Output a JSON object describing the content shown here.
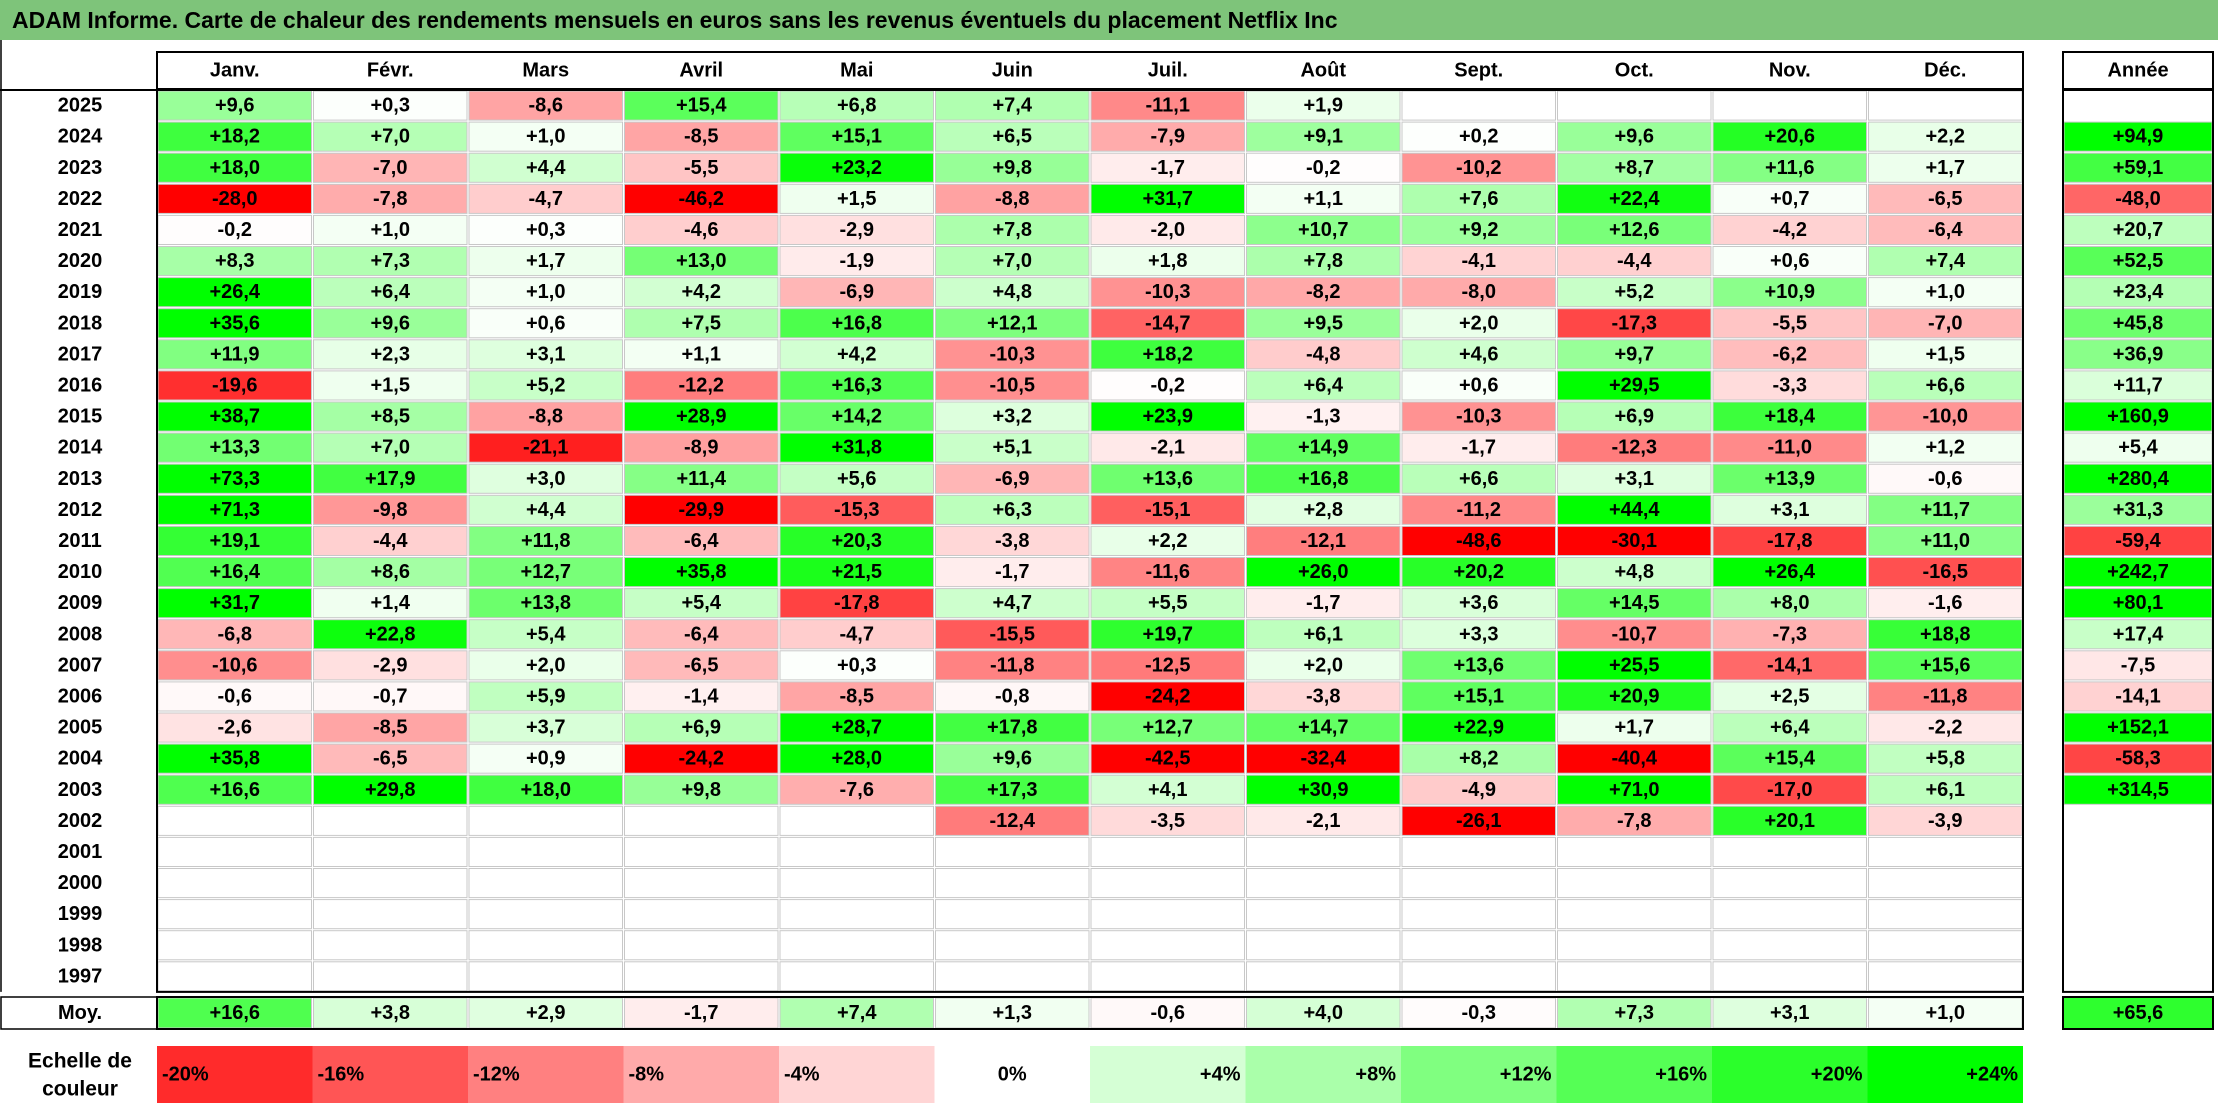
{
  "title": "ADAM Informe. Carte de chaleur des rendements mensuels en euros sans les revenus éventuels du placement Netflix Inc",
  "chart_data": {
    "type": "heatmap",
    "months": [
      "Janv.",
      "Févr.",
      "Mars",
      "Avril",
      "Mai",
      "Juin",
      "Juil.",
      "Août",
      "Sept.",
      "Oct.",
      "Nov.",
      "Déc."
    ],
    "year_header": "Année",
    "years": [
      "2025",
      "2024",
      "2023",
      "2022",
      "2021",
      "2020",
      "2019",
      "2018",
      "2017",
      "2016",
      "2015",
      "2014",
      "2013",
      "2012",
      "2011",
      "2010",
      "2009",
      "2008",
      "2007",
      "2006",
      "2005",
      "2004",
      "2003",
      "2002",
      "2001",
      "2000",
      "1999",
      "1998",
      "1997"
    ],
    "values": [
      [
        9.6,
        0.3,
        -8.6,
        15.4,
        6.8,
        7.4,
        -11.1,
        1.9,
        null,
        null,
        null,
        null
      ],
      [
        18.2,
        7.0,
        1.0,
        -8.5,
        15.1,
        6.5,
        -7.9,
        9.1,
        0.2,
        9.6,
        20.6,
        2.2
      ],
      [
        18.0,
        -7.0,
        4.4,
        -5.5,
        23.2,
        9.8,
        -1.7,
        -0.2,
        -10.2,
        8.7,
        11.6,
        1.7
      ],
      [
        -28.0,
        -7.8,
        -4.7,
        -46.2,
        1.5,
        -8.8,
        31.7,
        1.1,
        7.6,
        22.4,
        0.7,
        -6.5
      ],
      [
        -0.2,
        1.0,
        0.3,
        -4.6,
        -2.9,
        7.8,
        -2.0,
        10.7,
        9.2,
        12.6,
        -4.2,
        -6.4
      ],
      [
        8.3,
        7.3,
        1.7,
        13.0,
        -1.9,
        7.0,
        1.8,
        7.8,
        -4.1,
        -4.4,
        0.6,
        7.4
      ],
      [
        26.4,
        6.4,
        1.0,
        4.2,
        -6.9,
        4.8,
        -10.3,
        -8.2,
        -8.0,
        5.2,
        10.9,
        1.0
      ],
      [
        35.6,
        9.6,
        0.6,
        7.5,
        16.8,
        12.1,
        -14.7,
        9.5,
        2.0,
        -17.3,
        -5.5,
        -7.0
      ],
      [
        11.9,
        2.3,
        3.1,
        1.1,
        4.2,
        -10.3,
        18.2,
        -4.8,
        4.6,
        9.7,
        -6.2,
        1.5
      ],
      [
        -19.6,
        1.5,
        5.2,
        -12.2,
        16.3,
        -10.5,
        -0.2,
        6.4,
        0.6,
        29.5,
        -3.3,
        6.6
      ],
      [
        38.7,
        8.5,
        -8.8,
        28.9,
        14.2,
        3.2,
        23.9,
        -1.3,
        -10.3,
        6.9,
        18.4,
        -10.0
      ],
      [
        13.3,
        7.0,
        -21.1,
        -8.9,
        31.8,
        5.1,
        -2.1,
        14.9,
        -1.7,
        -12.3,
        -11.0,
        1.2
      ],
      [
        73.3,
        17.9,
        3.0,
        11.4,
        5.6,
        -6.9,
        13.6,
        16.8,
        6.6,
        3.1,
        13.9,
        -0.6
      ],
      [
        71.3,
        -9.8,
        4.4,
        -29.9,
        -15.3,
        6.3,
        -15.1,
        2.8,
        -11.2,
        44.4,
        3.1,
        11.7
      ],
      [
        19.1,
        -4.4,
        11.8,
        -6.4,
        20.3,
        -3.8,
        2.2,
        -12.1,
        -48.6,
        -30.1,
        -17.8,
        11.0
      ],
      [
        16.4,
        8.6,
        12.7,
        35.8,
        21.5,
        -1.7,
        -11.6,
        26.0,
        20.2,
        4.8,
        26.4,
        -16.5
      ],
      [
        31.7,
        1.4,
        13.8,
        5.4,
        -17.8,
        4.7,
        5.5,
        -1.7,
        3.6,
        14.5,
        8.0,
        -1.6
      ],
      [
        -6.8,
        22.8,
        5.4,
        -6.4,
        -4.7,
        -15.5,
        19.7,
        6.1,
        3.3,
        -10.7,
        -7.3,
        18.8
      ],
      [
        -10.6,
        -2.9,
        2.0,
        -6.5,
        0.3,
        -11.8,
        -12.5,
        2.0,
        13.6,
        25.5,
        -14.1,
        15.6
      ],
      [
        -0.6,
        -0.7,
        5.9,
        -1.4,
        -8.5,
        -0.8,
        -24.2,
        -3.8,
        15.1,
        20.9,
        2.5,
        -11.8
      ],
      [
        -2.6,
        -8.5,
        3.7,
        6.9,
        28.7,
        17.8,
        12.7,
        14.7,
        22.9,
        1.7,
        6.4,
        -2.2
      ],
      [
        35.8,
        -6.5,
        0.9,
        -24.2,
        28.0,
        9.6,
        -42.5,
        -32.4,
        8.2,
        -40.4,
        15.4,
        5.8
      ],
      [
        16.6,
        29.8,
        18.0,
        9.8,
        -7.6,
        17.3,
        4.1,
        30.9,
        -4.9,
        71.0,
        -17.0,
        6.1
      ],
      [
        null,
        null,
        null,
        null,
        null,
        -12.4,
        -3.5,
        -2.1,
        -26.1,
        -7.8,
        20.1,
        -3.9
      ],
      [
        null,
        null,
        null,
        null,
        null,
        null,
        null,
        null,
        null,
        null,
        null,
        null
      ],
      [
        null,
        null,
        null,
        null,
        null,
        null,
        null,
        null,
        null,
        null,
        null,
        null
      ],
      [
        null,
        null,
        null,
        null,
        null,
        null,
        null,
        null,
        null,
        null,
        null,
        null
      ],
      [
        null,
        null,
        null,
        null,
        null,
        null,
        null,
        null,
        null,
        null,
        null,
        null
      ],
      [
        null,
        null,
        null,
        null,
        null,
        null,
        null,
        null,
        null,
        null,
        null,
        null
      ]
    ],
    "annual": [
      null,
      94.9,
      59.1,
      -48.0,
      20.7,
      52.5,
      23.4,
      45.8,
      36.9,
      11.7,
      160.9,
      5.4,
      280.4,
      31.3,
      -59.4,
      242.7,
      80.1,
      17.4,
      -7.5,
      -14.1,
      152.1,
      -58.3,
      314.5,
      null,
      null,
      null,
      null,
      null,
      null
    ],
    "average_label": "Moy.",
    "average": [
      16.6,
      3.8,
      2.9,
      -1.7,
      7.4,
      1.3,
      -0.6,
      4.0,
      -0.3,
      7.3,
      3.1,
      1.0
    ],
    "average_annual": 65.6,
    "scale_label_line1": "Echelle de",
    "scale_label_line2": "couleur",
    "scale_values": [
      -20,
      -16,
      -12,
      -8,
      -4,
      0,
      4,
      8,
      12,
      16,
      20,
      24
    ],
    "scale_labels": [
      "-20%",
      "-16%",
      "-12%",
      "-8%",
      "-4%",
      "0%",
      "+4%",
      "+8%",
      "+12%",
      "+16%",
      "+20%",
      "+24%"
    ],
    "colors": {
      "negative": "#ff0000",
      "positive": "#00ff00",
      "neutral": "#ffffff",
      "title_bg": "#7ec47a"
    }
  }
}
